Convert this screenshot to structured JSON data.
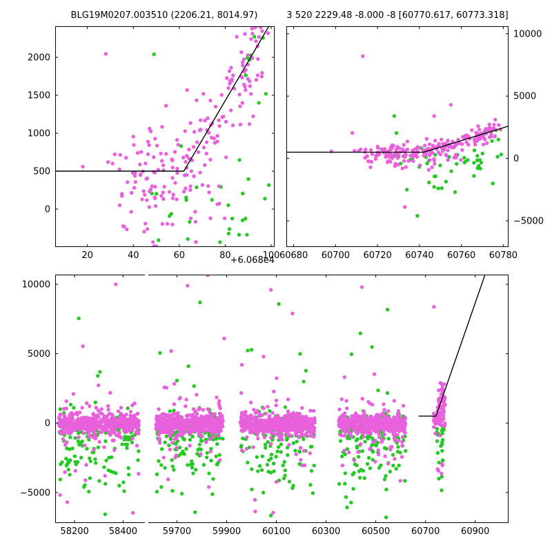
{
  "titles": {
    "left": "BLG19M0207.003510 (2206.21, 8014.97)",
    "right": "3 520 2229.48 -8.000 -8 [60770.617, 60773.318]"
  },
  "colors": {
    "pink": "#E960DC",
    "green": "#25C825",
    "line": "#000000",
    "background": "#ffffff"
  },
  "chart_data": {
    "type": "scatter",
    "marker_radius": 2.7,
    "fit_model": {
      "baseline": 500,
      "t_break": 60742,
      "slope": 51.6
    },
    "panels": {
      "zoom_panel": {
        "xlim": [
          60686,
          60781.5
        ],
        "ylim": [
          -500,
          2410
        ],
        "xticks": [
          {
            "v": 60700,
            "label": "20"
          },
          {
            "v": 60720,
            "label": "40"
          },
          {
            "v": 60740,
            "label": "60"
          },
          {
            "v": 60760,
            "label": "80"
          },
          {
            "v": 60780,
            "label": "100"
          }
        ],
        "x_offset_label": "+6.068e4",
        "yticks": [
          {
            "v": 0,
            "label": "0"
          },
          {
            "v": 500,
            "label": "500"
          },
          {
            "v": 1000,
            "label": "1000"
          },
          {
            "v": 1500,
            "label": "1500"
          },
          {
            "v": 2000,
            "label": "2000"
          }
        ],
        "ylabel_side": "left",
        "fit_line": [
          [
            60686,
            500
          ],
          [
            60742,
            500
          ],
          [
            60781.5,
            2538
          ]
        ],
        "scatter": "top"
      },
      "season_panel": {
        "xlim": [
          60676.5,
          60782.5
        ],
        "ylim": [
          -7100,
          10600
        ],
        "xticks": [
          {
            "v": 60680,
            "label": "60680"
          },
          {
            "v": 60700,
            "label": "60700"
          },
          {
            "v": 60720,
            "label": "60720"
          },
          {
            "v": 60740,
            "label": "60740"
          },
          {
            "v": 60760,
            "label": "60760"
          },
          {
            "v": 60780,
            "label": "60780"
          }
        ],
        "yticks": [
          {
            "v": -5000,
            "label": "−5000"
          },
          {
            "v": 0,
            "label": "0"
          },
          {
            "v": 5000,
            "label": "5000"
          },
          {
            "v": 10000,
            "label": "10000"
          }
        ],
        "ylabel_side": "right",
        "fit_line": [
          [
            60676.5,
            500
          ],
          [
            60742,
            500
          ],
          [
            60782.5,
            2590
          ]
        ],
        "scatter": "top"
      },
      "lightcurve_left": {
        "xlim": [
          58120,
          58490
        ],
        "ylim": [
          -7200,
          10700
        ],
        "xticks": [
          {
            "v": 58200,
            "label": "58200"
          },
          {
            "v": 58400,
            "label": "58400"
          }
        ],
        "yticks": [
          {
            "v": -5000,
            "label": "−5000"
          },
          {
            "v": 0,
            "label": "0"
          },
          {
            "v": 5000,
            "label": "5000"
          },
          {
            "v": 10000,
            "label": "10000"
          }
        ],
        "ylabel_side": "left",
        "spines": {
          "right": false
        },
        "scatter": "bottom"
      },
      "lightcurve_right": {
        "xlim": [
          59585,
          61034
        ],
        "ylim": [
          -7200,
          10700
        ],
        "xticks": [
          {
            "v": 59700,
            "label": "59700"
          },
          {
            "v": 59900,
            "label": "59900"
          },
          {
            "v": 60100,
            "label": "60100"
          },
          {
            "v": 60300,
            "label": "60300"
          },
          {
            "v": 60500,
            "label": "60500"
          },
          {
            "v": 60700,
            "label": "60700"
          },
          {
            "v": 60900,
            "label": "60900"
          }
        ],
        "yticks": [
          {
            "v": -5000,
            "label": ""
          },
          {
            "v": 0,
            "label": ""
          },
          {
            "v": 5000,
            "label": ""
          },
          {
            "v": 10000,
            "label": ""
          }
        ],
        "ylabel_side": null,
        "spines": {
          "left": false
        },
        "fit_line": [
          [
            60672,
            500
          ],
          [
            60742,
            500
          ],
          [
            60940,
            10717
          ]
        ],
        "scatter": "bottom"
      }
    },
    "top_scatter": {
      "clusters": [
        {
          "color": "pink",
          "n": 150,
          "x": [
            60722,
            60779
          ],
          "y": {
            "mode": "line",
            "noise": 330
          }
        },
        {
          "color": "pink",
          "n": 45,
          "x": [
            60713,
            60762
          ],
          "y": {
            "mode": "uniform",
            "range": [
              -350,
              650
            ]
          }
        },
        {
          "color": "pink",
          "n": 8,
          "x": [
            60708,
            60722
          ],
          "y": {
            "mode": "uniform",
            "range": [
              150,
              1000
            ]
          }
        },
        {
          "color": "pink",
          "n": 12,
          "x": [
            60715,
            60752
          ],
          "y": {
            "mode": "uniform",
            "range": [
              -1300,
              -100
            ]
          }
        },
        {
          "color": "green",
          "n": 32,
          "x": [
            60727,
            60781
          ],
          "y": {
            "mode": "gauss",
            "mean": -100,
            "sd": 450
          }
        },
        {
          "color": "green",
          "n": 8,
          "x": [
            60768,
            60781
          ],
          "y": {
            "mode": "uniform",
            "range": [
              1100,
              2300
            ]
          }
        },
        {
          "color": "green",
          "n": 6,
          "x": [
            60744,
            60770
          ],
          "y": {
            "mode": "uniform",
            "range": [
              -2800,
              -1200
            ]
          }
        }
      ],
      "outliers": {
        "pink": [
          [
            60713,
            8200
          ],
          [
            60755,
            4300
          ],
          [
            60747,
            3400
          ],
          [
            60708,
            2045
          ],
          [
            60733,
            -3900
          ],
          [
            60715,
            200
          ],
          [
            60716,
            -230
          ],
          [
            60720,
            955
          ],
          [
            60709,
            620
          ],
          [
            60711,
            600
          ],
          [
            60729,
            -490
          ],
          [
            60698,
            560
          ]
        ],
        "green": [
          [
            60728,
            3400
          ],
          [
            60729,
            2040
          ],
          [
            60734,
            -2500
          ],
          [
            60739,
            -4600
          ],
          [
            60749,
            -2400
          ],
          [
            60757,
            -2700
          ],
          [
            60775,
            -2000
          ],
          [
            60766,
            -1400
          ],
          [
            60731,
            -410
          ]
        ]
      }
    },
    "bottom_scatter": {
      "seasons": [
        [
          58135,
          58465
        ],
        [
          59615,
          59885
        ],
        [
          59955,
          60255
        ],
        [
          60350,
          60620
        ]
      ],
      "season_clusters": [
        {
          "color": "green",
          "n": 95,
          "y": {
            "mode": "gauss",
            "mean": -450,
            "sd": 650
          }
        },
        {
          "color": "green",
          "n": 60,
          "y": {
            "mode": "gauss",
            "mean": -2700,
            "sd": 1250
          }
        },
        {
          "color": "green",
          "n": 5,
          "y": {
            "mode": "uniform",
            "range": [
              500,
              5500
            ]
          }
        },
        {
          "color": "pink",
          "n": 420,
          "y": {
            "mode": "gauss",
            "mean": -60,
            "sd": 330
          }
        },
        {
          "color": "pink",
          "n": 85,
          "y": {
            "mode": "gauss",
            "mean": -250,
            "sd": 1050
          }
        },
        {
          "color": "pink",
          "n": 12,
          "y": {
            "mode": "uniform",
            "range": [
              -6600,
              5200
            ]
          }
        }
      ],
      "current_clusters": [
        {
          "color": "pink",
          "n": 58,
          "x": [
            60752,
            60779
          ],
          "y": {
            "mode": "uniform",
            "range": [
              -250,
              2950
            ]
          }
        },
        {
          "color": "pink",
          "n": 26,
          "x": [
            60732,
            60764
          ],
          "y": {
            "mode": "gauss",
            "mean": 250,
            "sd": 380
          }
        },
        {
          "color": "pink",
          "n": 5,
          "x": [
            60738,
            60770
          ],
          "y": {
            "mode": "uniform",
            "range": [
              -3900,
              -600
            ]
          }
        },
        {
          "color": "green",
          "n": 18,
          "x": [
            60742,
            60776
          ],
          "y": {
            "mode": "gauss",
            "mean": -650,
            "sd": 520
          }
        },
        {
          "color": "green",
          "n": 9,
          "x": [
            60744,
            60772
          ],
          "y": {
            "mode": "uniform",
            "range": [
              -4900,
              -1300
            ]
          }
        }
      ],
      "outliers": {
        "pink": [
          [
            58370,
            10000
          ],
          [
            58234,
            5540
          ],
          [
            59743,
            9900
          ],
          [
            59824,
            10650
          ],
          [
            60078,
            9600
          ],
          [
            60444,
            9800
          ],
          [
            60165,
            7900
          ],
          [
            60734,
            8380
          ],
          [
            59890,
            6100
          ]
        ],
        "green": [
          [
            58217,
            7550
          ],
          [
            59793,
            8700
          ],
          [
            60110,
            8580
          ],
          [
            60438,
            6470
          ],
          [
            60547,
            8180
          ],
          [
            58326,
            -6570
          ],
          [
            59773,
            -6420
          ],
          [
            60078,
            -6660
          ]
        ]
      }
    }
  }
}
